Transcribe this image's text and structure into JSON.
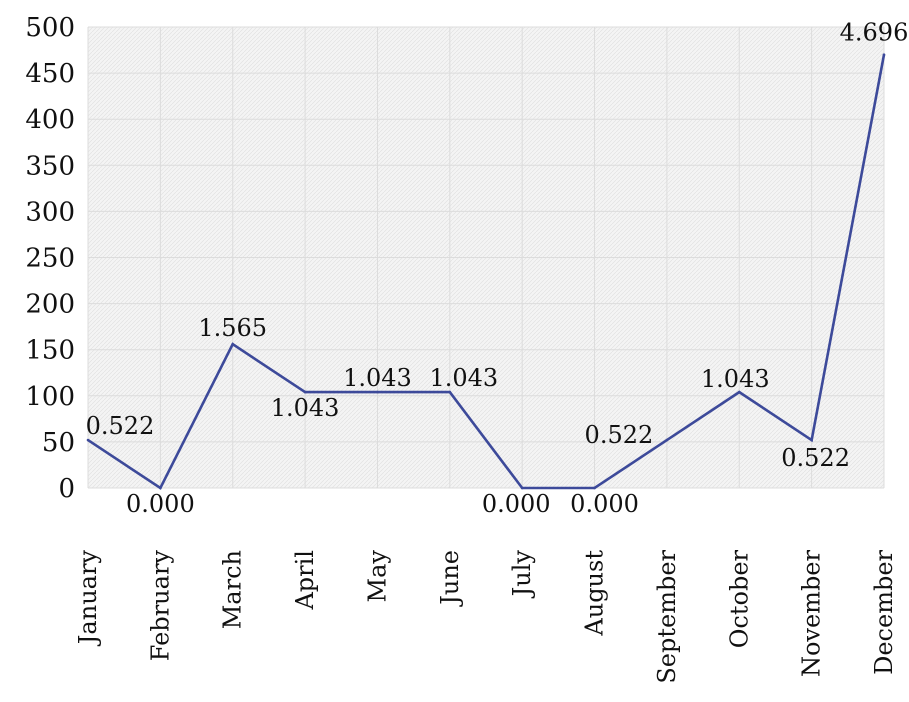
{
  "chart_data": {
    "type": "line",
    "title": "",
    "xlabel": "",
    "ylabel": "",
    "categories": [
      "January",
      "February",
      "March",
      "April",
      "May",
      "June",
      "July",
      "August",
      "September",
      "October",
      "November",
      "December"
    ],
    "values": [
      52,
      0,
      156,
      104,
      104,
      104,
      0,
      0,
      52,
      104,
      52,
      470
    ],
    "data_labels": [
      "0.522",
      "0.000",
      "1.565",
      "1.043",
      "1.043",
      "1.043",
      "0.000",
      "0.000",
      "0.522",
      "1.043",
      "0.522",
      "4.696"
    ],
    "ylim": [
      0,
      500
    ],
    "yticks": [
      0,
      50,
      100,
      150,
      200,
      250,
      300,
      350,
      400,
      450,
      500
    ],
    "ytick_labels": [
      "0",
      "50",
      "100",
      "150",
      "200",
      "250",
      "300",
      "350",
      "400",
      "450",
      "500"
    ],
    "grid": true,
    "line_color": "#3d4a9a",
    "background": "hatched light gray"
  }
}
